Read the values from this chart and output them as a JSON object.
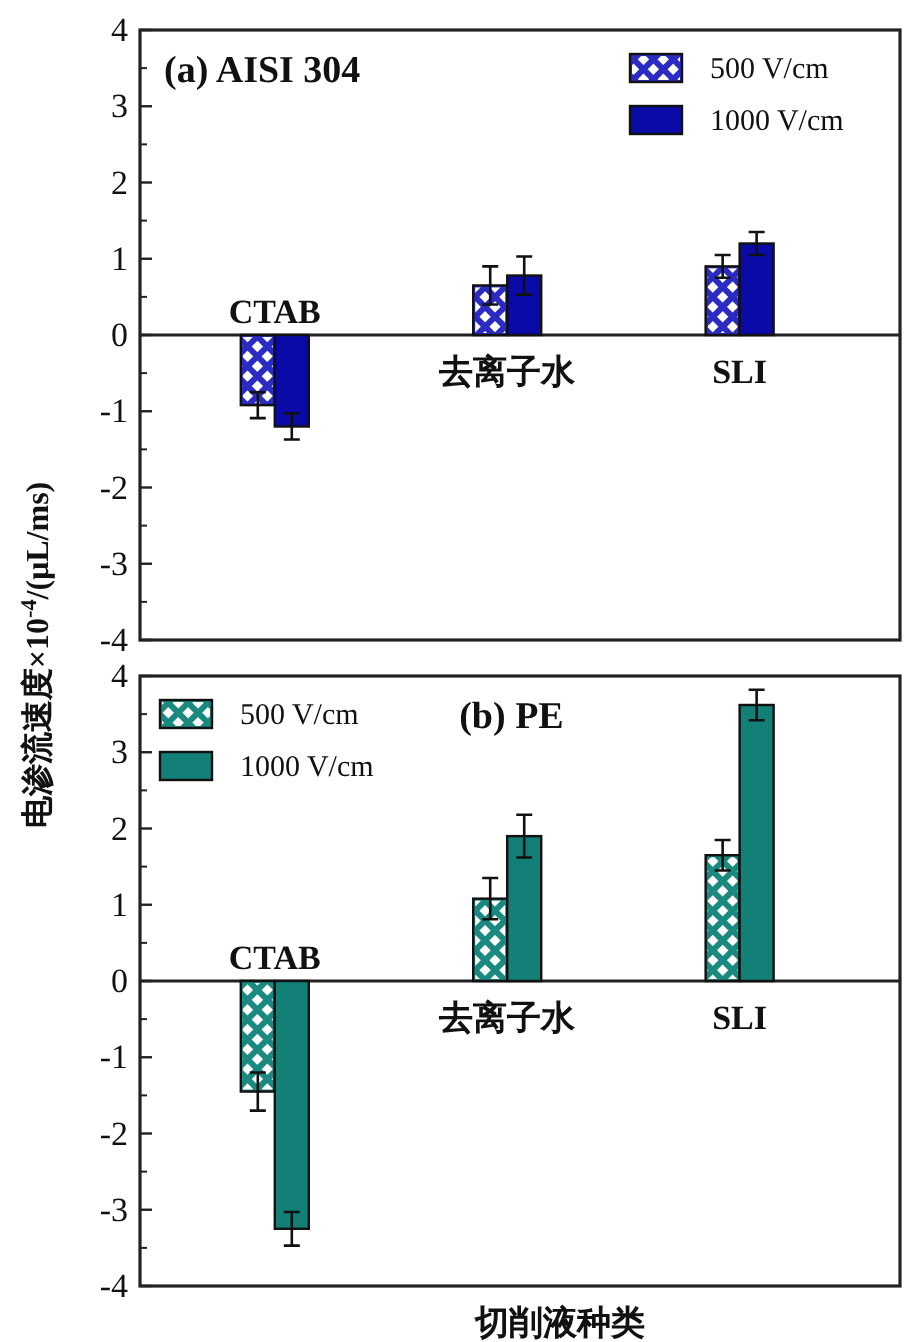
{
  "chart_data": [
    {
      "type": "bar",
      "title": "(a) AISI 304",
      "ylabel": "电渗流速度×10$^{-4}$/(μL/ms)",
      "categories": [
        "CTAB",
        "去离子水",
        "SLI"
      ],
      "ylim": [
        -4,
        4
      ],
      "yticks": [
        -4,
        -3,
        -2,
        -1,
        0,
        1,
        2,
        3,
        4
      ],
      "legend": "top right",
      "tick_labels": "y",
      "series": [
        {
          "name": "500 V/cm",
          "color": "#2b2bc4",
          "values": [
            -0.92,
            0.65,
            0.9
          ],
          "errors": [
            0.17,
            0.25,
            0.15
          ]
        },
        {
          "name": "1000 V/cm",
          "color": "#0a0aa6",
          "values": [
            -1.2,
            0.78,
            1.2
          ],
          "errors": [
            0.17,
            0.25,
            0.15
          ]
        }
      ]
    },
    {
      "type": "bar",
      "title": "(b) PE",
      "xlabel": "切削液种类",
      "categories": [
        "CTAB",
        "去离子水",
        "SLI"
      ],
      "ylim": [
        -4,
        4
      ],
      "yticks": [
        -4,
        -3,
        -2,
        -1,
        0,
        1,
        2,
        3,
        4
      ],
      "legend": "top left",
      "tick_labels": "y",
      "series": [
        {
          "name": "500 V/cm",
          "color": "#1a8a80",
          "values": [
            -1.45,
            1.08,
            1.65
          ],
          "errors": [
            0.25,
            0.27,
            0.2
          ]
        },
        {
          "name": "1000 V/cm",
          "color": "#138078",
          "values": [
            -3.25,
            1.9,
            3.62
          ],
          "errors": [
            0.22,
            0.28,
            0.2
          ]
        }
      ]
    }
  ]
}
